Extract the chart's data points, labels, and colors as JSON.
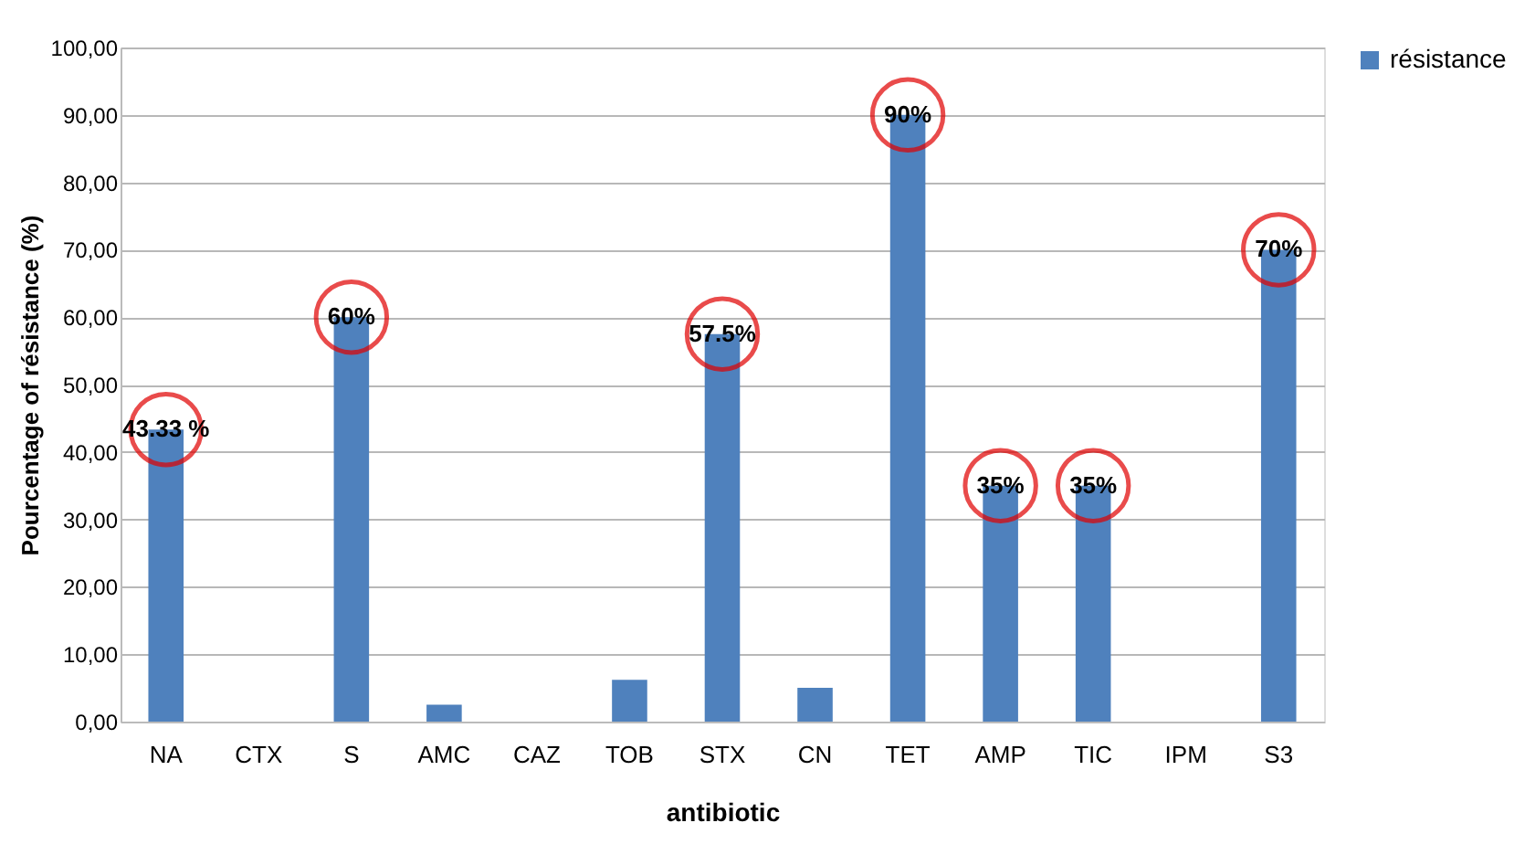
{
  "chart_data": {
    "type": "bar",
    "xlabel": "antibiotic",
    "ylabel": "Pourcentage of résistance (%)",
    "categories": [
      "NA",
      "CTX",
      "S",
      "AMC",
      "CAZ",
      "TOB",
      "STX",
      "CN",
      "TET",
      "AMP",
      "TIC",
      "IPM",
      "S3"
    ],
    "series": [
      {
        "name": "résistance",
        "color": "#4f81bd",
        "values": [
          43.33,
          0,
          60,
          2.5,
          0,
          6.2,
          57.5,
          5,
          90,
          35,
          35,
          0,
          70
        ],
        "value_labels": [
          "43.33 %",
          null,
          "60%",
          null,
          null,
          null,
          "57.5%",
          null,
          "90%",
          "35%",
          "35%",
          null,
          "70%"
        ]
      }
    ],
    "ylim": [
      0,
      100
    ],
    "yticks": [
      {
        "value": 0,
        "label": "0,00"
      },
      {
        "value": 10,
        "label": "10,00"
      },
      {
        "value": 20,
        "label": "20,00"
      },
      {
        "value": 30,
        "label": "30,00"
      },
      {
        "value": 40,
        "label": "40,00"
      },
      {
        "value": 50,
        "label": "50,00"
      },
      {
        "value": 60,
        "label": "60,00"
      },
      {
        "value": 70,
        "label": "70,00"
      },
      {
        "value": 80,
        "label": "80,00"
      },
      {
        "value": 90,
        "label": "90,00"
      },
      {
        "value": 100,
        "label": "100,00"
      }
    ],
    "grid": "y",
    "legend": "right"
  }
}
